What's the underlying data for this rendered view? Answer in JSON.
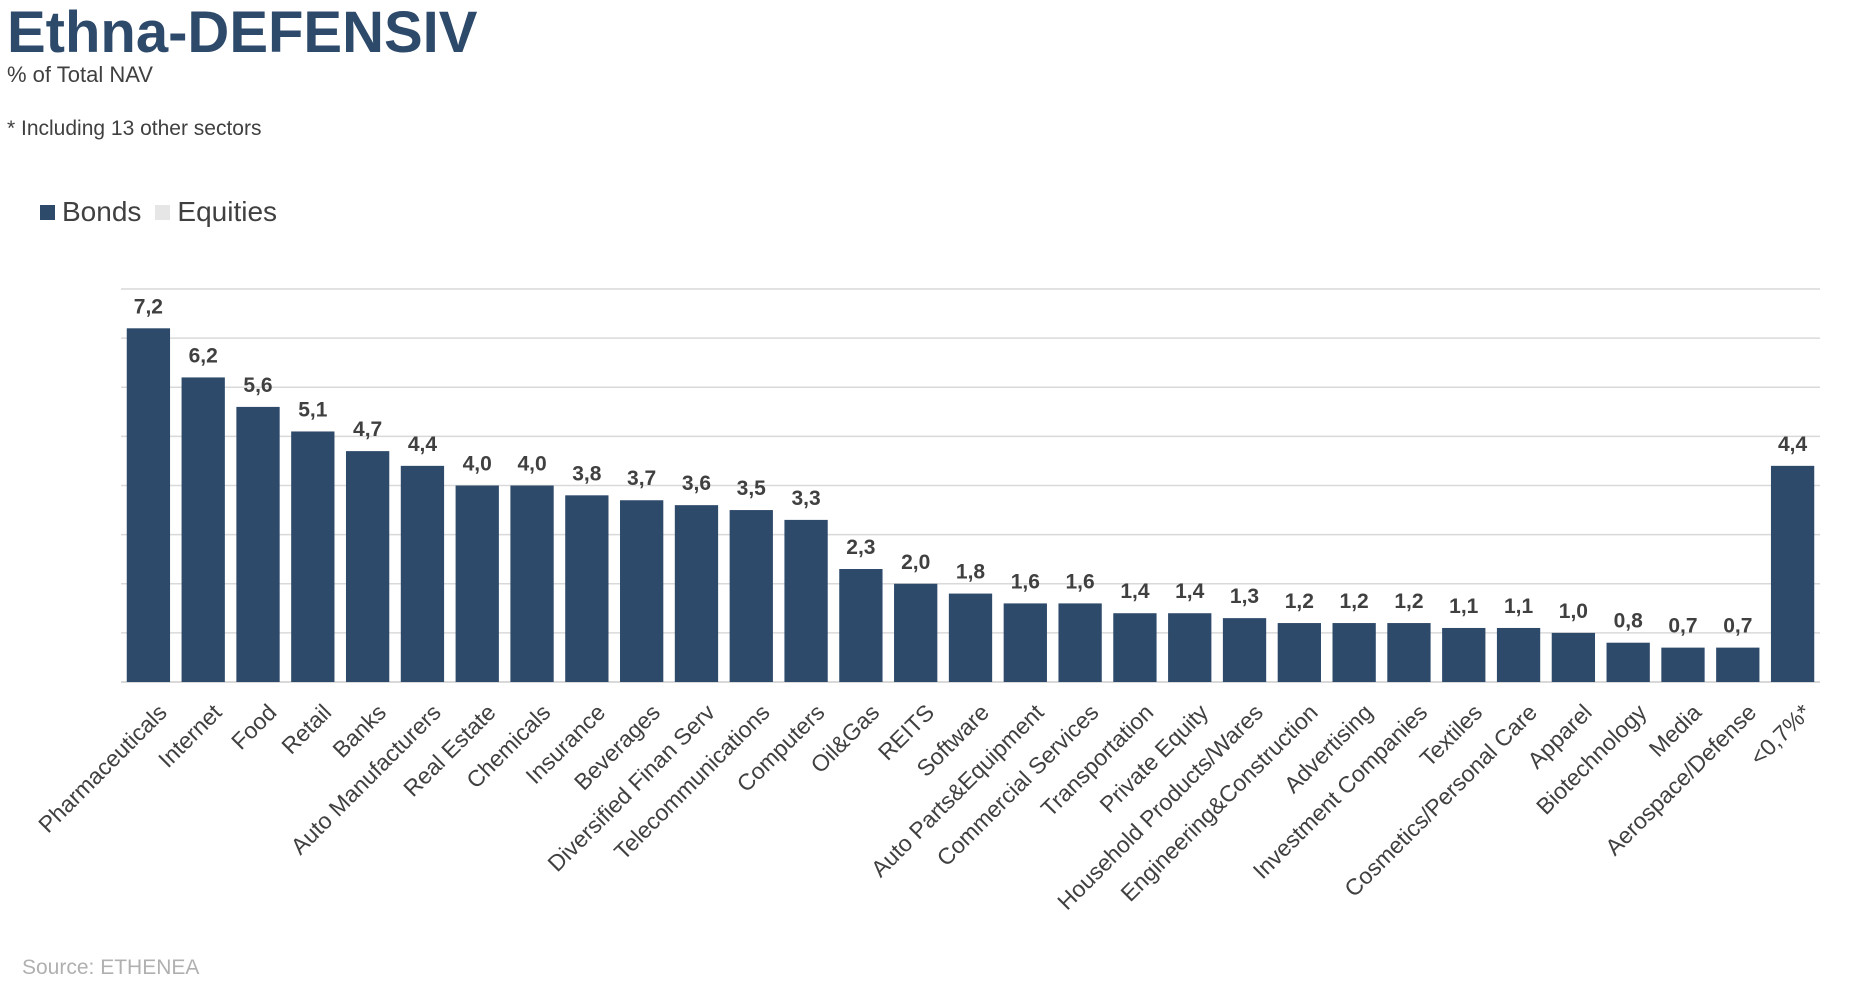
{
  "title": "Ethna-DEFENSIV",
  "subtitle": "% of Total NAV",
  "note": "* Including 13 other sectors",
  "source": "Source: ETHENEA",
  "colors": {
    "bonds": "#2e4a6b",
    "equities": "#e6e6e6",
    "gridline": "#d9d9d9",
    "label": "#404040",
    "title": "#2e4a6b"
  },
  "chart_data": {
    "type": "bar",
    "title": "Ethna-DEFENSIV",
    "subtitle": "% of Total NAV",
    "xlabel": "",
    "ylabel": "",
    "ylim": [
      0,
      8
    ],
    "grid": true,
    "legend_position": "top-left",
    "legend": [
      "Bonds",
      "Equities"
    ],
    "categories": [
      "Pharmaceuticals",
      "Internet",
      "Food",
      "Retail",
      "Banks",
      "Auto Manufacturers",
      "Real Estate",
      "Chemicals",
      "Insurance",
      "Beverages",
      "Diversified Finan Serv",
      "Telecommunications",
      "Computers",
      "Oil&Gas",
      "REITS",
      "Software",
      "Auto Parts&Equipment",
      "Commercial Services",
      "Transportation",
      "Private Equity",
      "Household Products/Wares",
      "Engineering&Construction",
      "Advertising",
      "Investment Companies",
      "Textiles",
      "Cosmetics/Personal Care",
      "Apparel",
      "Biotechnology",
      "Media",
      "Aerospace/Defense",
      "<0,7%*"
    ],
    "series": [
      {
        "name": "Bonds",
        "values": [
          7.2,
          6.2,
          5.6,
          5.1,
          4.7,
          4.4,
          4.0,
          4.0,
          3.8,
          3.7,
          3.6,
          3.5,
          3.3,
          2.3,
          2.0,
          1.8,
          1.6,
          1.6,
          1.4,
          1.4,
          1.3,
          1.2,
          1.2,
          1.2,
          1.1,
          1.1,
          1.0,
          0.8,
          0.7,
          0.7,
          4.4
        ]
      },
      {
        "name": "Equities",
        "values": [
          0,
          0,
          0,
          0,
          0,
          0,
          0,
          0,
          0,
          0,
          0,
          0,
          0,
          0,
          0,
          0,
          0,
          0,
          0,
          0,
          0,
          0,
          0,
          0,
          0,
          0,
          0,
          0,
          0,
          0,
          0
        ]
      }
    ],
    "data_labels": [
      "7,2",
      "6,2",
      "5,6",
      "5,1",
      "4,7",
      "4,4",
      "4,0",
      "4,0",
      "3,8",
      "3,7",
      "3,6",
      "3,5",
      "3,3",
      "2,3",
      "2,0",
      "1,8",
      "1,6",
      "1,6",
      "1,4",
      "1,4",
      "1,3",
      "1,2",
      "1,2",
      "1,2",
      "1,1",
      "1,1",
      "1,0",
      "0,8",
      "0,7",
      "0,7",
      "4,4"
    ]
  }
}
